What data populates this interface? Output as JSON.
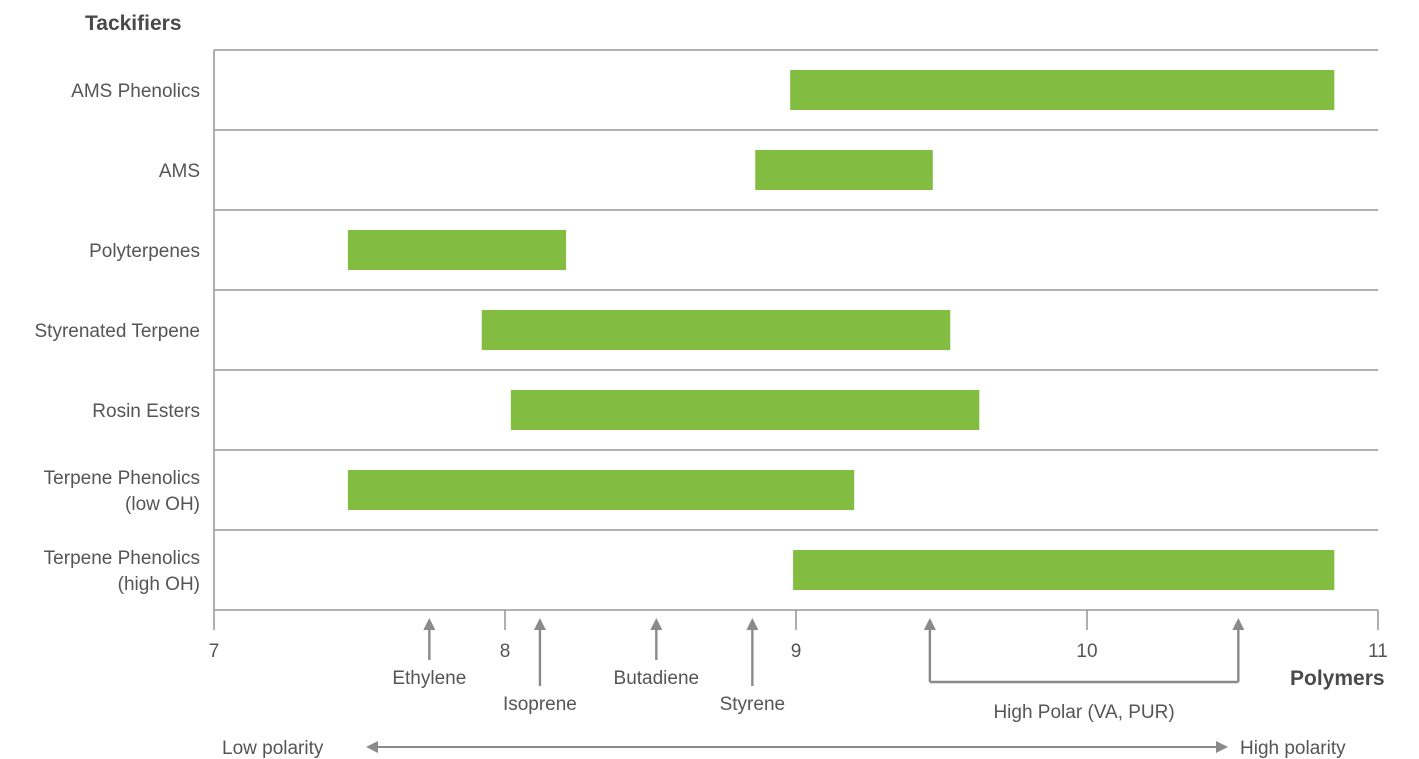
{
  "chart_data": {
    "type": "bar",
    "orientation": "horizontal-range",
    "ylabel": "Tackifiers",
    "xlabel": "Polymers",
    "xlim": [
      7,
      11
    ],
    "x_ticks": [
      "7",
      "8",
      "9",
      "10",
      "11"
    ],
    "grid": true,
    "bar_color": "#82bd41",
    "axis_color": "#999999",
    "categories": [
      [
        {
          "text": "AMS Phenolics"
        }
      ],
      [
        {
          "text": "AMS"
        }
      ],
      [
        {
          "text": "Polyterpenes"
        }
      ],
      [
        {
          "text": "Styrenated Terpene"
        }
      ],
      [
        {
          "text": "Rosin Esters"
        }
      ],
      [
        {
          "text": "Terpene Phenolics"
        },
        {
          "text": "(low OH)"
        }
      ],
      [
        {
          "text": "Terpene Phenolics"
        },
        {
          "text": "(high OH)"
        }
      ]
    ],
    "ranges": [
      [
        8.98,
        10.85
      ],
      [
        8.86,
        9.47
      ],
      [
        7.46,
        8.21
      ],
      [
        7.92,
        9.53
      ],
      [
        8.02,
        9.63
      ],
      [
        7.46,
        9.2
      ],
      [
        8.99,
        10.85
      ]
    ],
    "polymer_markers": [
      {
        "name": "Ethylene",
        "x": 7.74
      },
      {
        "name": "Isoprene",
        "x": 8.12
      },
      {
        "name": "Butadiene",
        "x": 8.52
      },
      {
        "name": "Styrene",
        "x": 8.85
      }
    ],
    "polar_group": {
      "label": "High Polar (VA, PUR)",
      "x_start": 9.46,
      "x_end": 10.52
    },
    "polarity_scale": {
      "low": "Low polarity",
      "high": "High polarity"
    }
  }
}
